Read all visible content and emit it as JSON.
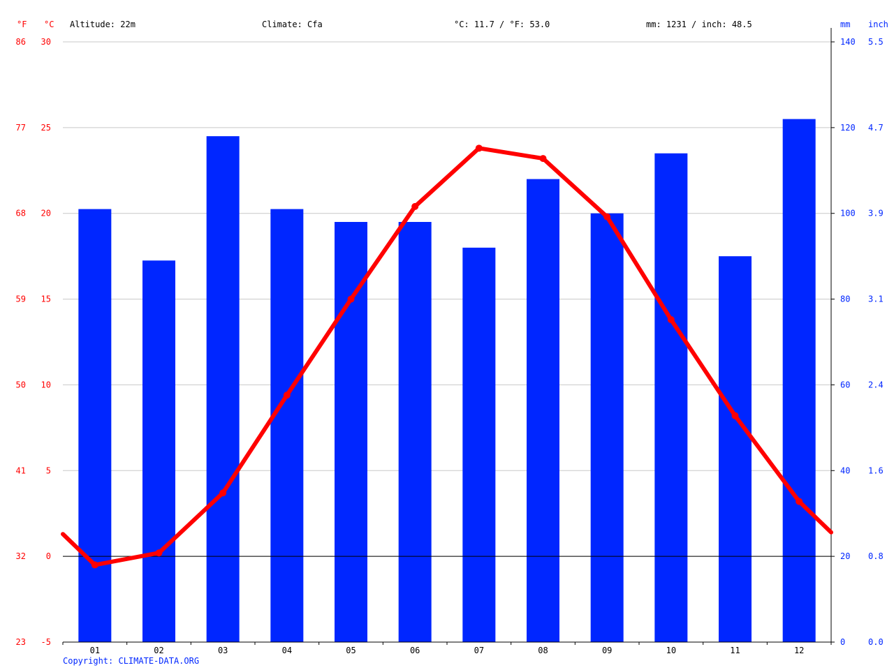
{
  "header": {
    "altitude": "Altitude: 22m",
    "climate": "Climate: Cfa",
    "temperature_avg": "°C: 11.7 / °F: 53.0",
    "precipitation_total": "mm: 1231 / inch: 48.5"
  },
  "units": {
    "fahrenheit": "°F",
    "celsius": "°C",
    "mm": "mm",
    "inch": "inch"
  },
  "copyright": "Copyright: CLIMATE-DATA.ORG",
  "colors": {
    "temperature": "#ff0000",
    "precipitation": "#0026ff",
    "grid": "#c8c8c8",
    "zero_line": "#000000"
  },
  "chart_data": {
    "type": "bar+line",
    "categories": [
      "01",
      "02",
      "03",
      "04",
      "05",
      "06",
      "07",
      "08",
      "09",
      "10",
      "11",
      "12"
    ],
    "series": [
      {
        "type": "bar",
        "axis": "right",
        "values": [
          101,
          89,
          118,
          101,
          98,
          98,
          92,
          108,
          100,
          114,
          90,
          122
        ]
      },
      {
        "type": "line",
        "axis": "left",
        "values": [
          -0.5,
          0.2,
          3.7,
          9.4,
          15.0,
          20.4,
          23.8,
          23.2,
          19.8,
          13.8,
          8.2,
          3.2
        ],
        "start_value": 1.3,
        "end_value": 1.4
      }
    ],
    "axes": {
      "left_celsius": {
        "ylim": [
          -5,
          30
        ],
        "ticks": [
          "-5",
          "0",
          "5",
          "10",
          "15",
          "20",
          "25",
          "30"
        ]
      },
      "left_fahrenheit": {
        "ticks": [
          "23",
          "32",
          "41",
          "50",
          "59",
          "68",
          "77",
          "86"
        ]
      },
      "right_mm": {
        "ylim": [
          0,
          140
        ],
        "ticks": [
          "0",
          "20",
          "40",
          "60",
          "80",
          "100",
          "120",
          "140"
        ]
      },
      "right_inch": {
        "ticks": [
          "0.0",
          "0.8",
          "1.6",
          "2.4",
          "3.1",
          "3.9",
          "4.7",
          "5.5"
        ]
      }
    },
    "grid": true
  }
}
